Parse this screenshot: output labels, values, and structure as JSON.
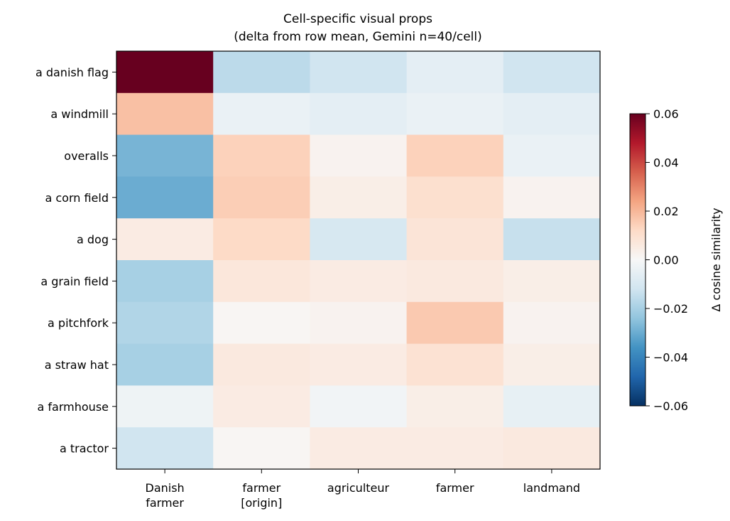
{
  "chart_data": {
    "type": "heatmap",
    "title": "Cell-specific visual props",
    "subtitle": "(delta from row mean, Gemini n=40/cell)",
    "columns": [
      [
        "Danish",
        "farmer"
      ],
      [
        "farmer",
        "[origin]"
      ],
      [
        "agriculteur"
      ],
      [
        "farmer"
      ],
      [
        "landmand"
      ]
    ],
    "rows": [
      "a danish flag",
      "a windmill",
      "overalls",
      "a corn field",
      "a dog",
      "a grain field",
      "a pitchfork",
      "a straw hat",
      "a farmhouse",
      "a tractor"
    ],
    "values": [
      [
        0.06,
        -0.016,
        -0.012,
        -0.006,
        -0.012
      ],
      [
        0.018,
        -0.004,
        -0.006,
        -0.004,
        -0.006
      ],
      [
        -0.028,
        0.014,
        0.002,
        0.014,
        -0.004
      ],
      [
        -0.03,
        0.015,
        0.004,
        0.01,
        0.002
      ],
      [
        0.005,
        0.012,
        -0.01,
        0.008,
        -0.014
      ],
      [
        -0.02,
        0.007,
        0.005,
        0.006,
        0.004
      ],
      [
        -0.018,
        0.001,
        0.002,
        0.016,
        0.002
      ],
      [
        -0.02,
        0.006,
        0.005,
        0.009,
        0.004
      ],
      [
        -0.003,
        0.005,
        -0.002,
        0.004,
        -0.005
      ],
      [
        -0.012,
        0.001,
        0.005,
        0.005,
        0.006
      ]
    ],
    "colormap": "RdBu_r",
    "colorbar": {
      "label": "Δ cosine similarity",
      "ticks": [
        "0.06",
        "0.04",
        "0.02",
        "0.00",
        "−0.02",
        "−0.04",
        "−0.06"
      ],
      "range": [
        -0.06,
        0.06
      ]
    }
  }
}
